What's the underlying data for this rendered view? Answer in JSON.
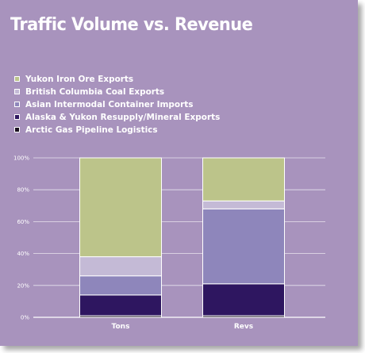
{
  "chart_data": {
    "type": "bar",
    "stacked": true,
    "title": "Traffic Volume vs. Revenue",
    "categories": [
      "Tons",
      "Revs"
    ],
    "ylim": [
      0,
      100
    ],
    "yticks": [
      "0%",
      "20%",
      "40%",
      "60%",
      "80%",
      "100%"
    ],
    "grid": true,
    "legend_position": "top-left",
    "series": [
      {
        "name": "Arctic Gas Pipeline Logistics",
        "color": "#1a1020",
        "values": [
          1,
          1
        ]
      },
      {
        "name": "Alaska & Yukon Resupply/Mineral Exports",
        "color": "#2e1660",
        "values": [
          13,
          20
        ]
      },
      {
        "name": "Asian Intermodal Container Imports",
        "color": "#8e86bb",
        "values": [
          12,
          47
        ]
      },
      {
        "name": "British Columbia Coal Exports",
        "color": "#c4bad6",
        "values": [
          12,
          5
        ]
      },
      {
        "name": "Yukon Iron Ore Exports",
        "color": "#bcc48a",
        "values": [
          62,
          27
        ]
      }
    ],
    "legend_order": [
      4,
      3,
      2,
      1,
      0
    ]
  }
}
